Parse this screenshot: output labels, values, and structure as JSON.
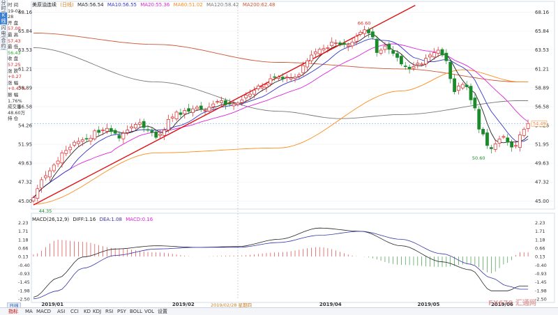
{
  "sidebar": {
    "tabs": [
      {
        "label": "分时图",
        "active": false
      },
      {
        "label": "K线图",
        "active": true
      },
      {
        "label": "闪电图",
        "active": false
      },
      {
        "label": "合约资料",
        "active": false
      }
    ]
  },
  "info_panel": [
    {
      "label": "时 间",
      "value": "19-02-28",
      "color": "#333333"
    },
    {
      "label": "开 盘",
      "value": "57.00",
      "color": "#dd2222"
    },
    {
      "label": "最 高",
      "value": "57.43",
      "color": "#dd2222"
    },
    {
      "label": "最 低",
      "value": "56.43",
      "color": "#22aa22"
    },
    {
      "label": "收 盘",
      "value": "57.25",
      "color": "#dd2222"
    },
    {
      "label": "涨 跌",
      "value": "+0.27",
      "color": "#dd2222"
    },
    {
      "label": "涨 幅",
      "value": "+0.47%",
      "color": "#dd2222"
    },
    {
      "label": "振 幅",
      "value": "1.76%",
      "color": "#333333"
    },
    {
      "label": "成交量",
      "value": "48.60万",
      "color": "#333333"
    },
    {
      "label": "持 仓",
      "value": "",
      "color": "#333333"
    }
  ],
  "legend": {
    "symbol": "美原油连续",
    "period": "(日线)",
    "ma5": "MA5:56.54",
    "ma10": "MA10:56.55",
    "ma20": "MA20:55.36",
    "ma60": "MA60:51.02",
    "ma120": "MA120:58.42",
    "ma200": "MA200:62.48"
  },
  "macd_legend": {
    "params": "MACD(26,12,9)",
    "diff": "DIFF:1.16",
    "dea": "DEA:1.08",
    "macd": "MACD:0.16"
  },
  "period_button": "日线",
  "hover_date": "2019/02/28 星期四",
  "last_price_tag": "54.49",
  "bottom_tabs": [
    "指标",
    "MA",
    "MACD",
    "ASI",
    "CCI",
    "KD",
    "KDJ",
    "RSI",
    "PSY",
    "BOLL",
    "VOL",
    "设置"
  ],
  "watermark": "FX678 汇通网",
  "colors": {
    "up": "#dd2222",
    "down": "#1a8a2a",
    "ma5": "#222222",
    "ma10": "#3333cc",
    "ma20": "#dd22dd",
    "ma60": "#ff8c1a",
    "ma120": "#cc5533",
    "ma200": "#777777",
    "trend": "#e01010",
    "diff": "#222222",
    "dea": "#3333aa"
  },
  "chart_data": [
    {
      "type": "candlestick",
      "title": "美原油连续 (日线)",
      "x_labels": [
        "2019/01",
        "2019/02",
        "2019/04",
        "2019/05",
        "2019/06"
      ],
      "y_ticks": [
        45.0,
        47.32,
        49.63,
        51.95,
        54.26,
        56.58,
        58.89,
        61.21,
        63.53,
        65.84,
        68.16
      ],
      "ylim": [
        44.0,
        68.8
      ],
      "annotations": [
        {
          "text": "66.60",
          "type": "high"
        },
        {
          "text": "50.60",
          "type": "low"
        },
        {
          "text": "44.35",
          "type": "low"
        }
      ],
      "closes": [
        45.4,
        46.5,
        47.6,
        48.1,
        48.7,
        49.4,
        49.9,
        50.9,
        51.2,
        51.6,
        52.2,
        52.3,
        52.5,
        52.6,
        52.7,
        53.6,
        53.4,
        53.7,
        53.9,
        53.5,
        53.3,
        52.7,
        53.3,
        53.7,
        54.1,
        54.4,
        54.6,
        54.0,
        53.7,
        53.4,
        52.8,
        53.2,
        53.7,
        55.0,
        55.3,
        55.9,
        55.6,
        56.1,
        56.0,
        56.3,
        56.5,
        56.3,
        56.1,
        56.5,
        56.9,
        57.2,
        57.3,
        56.8,
        56.9,
        56.9,
        57.0,
        57.4,
        58.0,
        58.1,
        58.6,
        59.1,
        59.0,
        59.3,
        60.0,
        60.2,
        60.2,
        60.0,
        60.2,
        60.1,
        60.2,
        60.5,
        61.6,
        62.2,
        62.9,
        63.3,
        63.6,
        63.7,
        63.8,
        64.5,
        64.4,
        64.2,
        64.2,
        64.1,
        64.5,
        65.2,
        65.7,
        66.0,
        65.6,
        65.1,
        63.2,
        63.5,
        64.0,
        63.6,
        63.1,
        62.6,
        61.8,
        61.5,
        61.2,
        61.5,
        61.9,
        61.8,
        62.5,
        62.9,
        63.2,
        63.5,
        62.9,
        62.2,
        60.0,
        58.4,
        59.1,
        59.3,
        59.0,
        57.4,
        56.4,
        53.8,
        53.2,
        51.8,
        51.4,
        52.0,
        52.6,
        52.9,
        52.2,
        51.6,
        51.8,
        53.1,
        53.8,
        54.5
      ],
      "ma": {
        "MA5": "computed from closes",
        "MA10": "computed from closes",
        "MA20": "computed from closes"
      },
      "ma60_anchors": [
        [
          0,
          44.6
        ],
        [
          30,
          50.9
        ],
        [
          60,
          51.5
        ],
        [
          90,
          58.5
        ],
        [
          105,
          61.1
        ],
        [
          119,
          59.6
        ]
      ],
      "ma120_anchors": [
        [
          0,
          65.6
        ],
        [
          30,
          64.2
        ],
        [
          60,
          62.0
        ],
        [
          90,
          61.2
        ],
        [
          119,
          59.6
        ]
      ],
      "ma200_anchors": [
        [
          0,
          63.8
        ],
        [
          30,
          59.6
        ],
        [
          60,
          56.0
        ],
        [
          75,
          55.1
        ],
        [
          90,
          55.6
        ],
        [
          119,
          57.3
        ]
      ],
      "trendline": [
        [
          0,
          44.5
        ],
        [
          119,
          69.0
        ]
      ]
    },
    {
      "type": "line",
      "title": "MACD(26,12,9)",
      "y_ticks": [
        2.23,
        1.71,
        1.18,
        0.66,
        0.13,
        -0.4,
        -0.93,
        -1.45,
        -1.98,
        -2.5
      ],
      "ylim": [
        -2.55,
        2.3
      ],
      "series": [
        {
          "name": "DIFF",
          "anchors": [
            [
              0,
              -2.4
            ],
            [
              6,
              -1.2
            ],
            [
              12,
              0.1
            ],
            [
              20,
              0.6
            ],
            [
              30,
              0.8
            ],
            [
              40,
              0.7
            ],
            [
              50,
              0.75
            ],
            [
              60,
              1.2
            ],
            [
              70,
              1.9
            ],
            [
              80,
              1.7
            ],
            [
              90,
              0.8
            ],
            [
              100,
              -0.2
            ],
            [
              107,
              -0.7
            ],
            [
              112,
              -2.0
            ],
            [
              116,
              -2.0
            ],
            [
              119,
              -1.7
            ]
          ]
        },
        {
          "name": "DEA",
          "anchors": [
            [
              0,
              -2.5
            ],
            [
              6,
              -2.0
            ],
            [
              12,
              -0.6
            ],
            [
              20,
              0.2
            ],
            [
              30,
              0.6
            ],
            [
              40,
              0.7
            ],
            [
              50,
              0.7
            ],
            [
              60,
              1.0
            ],
            [
              70,
              1.45
            ],
            [
              80,
              1.7
            ],
            [
              90,
              1.2
            ],
            [
              100,
              0.3
            ],
            [
              107,
              -0.35
            ],
            [
              112,
              -1.2
            ],
            [
              116,
              -1.7
            ],
            [
              119,
              -1.9
            ]
          ]
        }
      ],
      "histogram": "DIFF minus DEA"
    }
  ]
}
